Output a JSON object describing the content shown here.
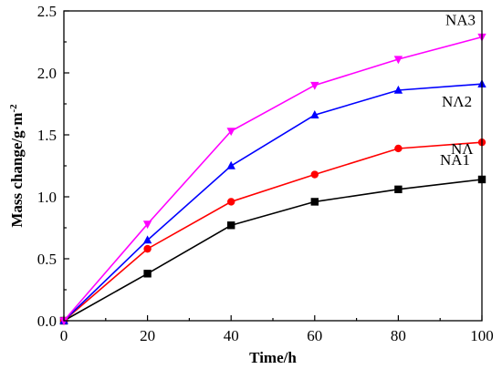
{
  "chart_data": {
    "type": "line",
    "title": "",
    "xlabel": "Time/h",
    "ylabel": "Mass change/g·m",
    "ylabel_superscript": "-2",
    "xlim": [
      0,
      100
    ],
    "ylim": [
      0,
      2.5
    ],
    "xticks": [
      0,
      20,
      40,
      60,
      80,
      100
    ],
    "yticks": [
      0.0,
      0.5,
      1.0,
      1.5,
      2.0,
      2.5
    ],
    "xtick_labels": [
      "0",
      "20",
      "40",
      "60",
      "80",
      "100"
    ],
    "ytick_labels": [
      "0.0",
      "0.5",
      "1.0",
      "1.5",
      "2.0",
      "2.5"
    ],
    "grid": false,
    "legend": "none",
    "x": [
      0,
      20,
      40,
      60,
      80,
      100
    ],
    "series": [
      {
        "name": "NA",
        "label": "NΛ",
        "color": "#000000",
        "marker": "square",
        "values": [
          0.0,
          0.38,
          0.77,
          0.96,
          1.06,
          1.14
        ]
      },
      {
        "name": "NA1",
        "label": "NA1",
        "color": "#ff0000",
        "marker": "circle",
        "values": [
          0.0,
          0.58,
          0.96,
          1.18,
          1.39,
          1.44
        ]
      },
      {
        "name": "NA2",
        "label": "NΛ2",
        "color": "#0000ff",
        "marker": "triangle-up",
        "values": [
          0.0,
          0.65,
          1.25,
          1.66,
          1.86,
          1.91
        ]
      },
      {
        "name": "NA3",
        "label": "NA3",
        "color": "#ff00ff",
        "marker": "triangle-down",
        "values": [
          0.0,
          0.78,
          1.53,
          1.9,
          2.11,
          2.29
        ]
      }
    ]
  }
}
